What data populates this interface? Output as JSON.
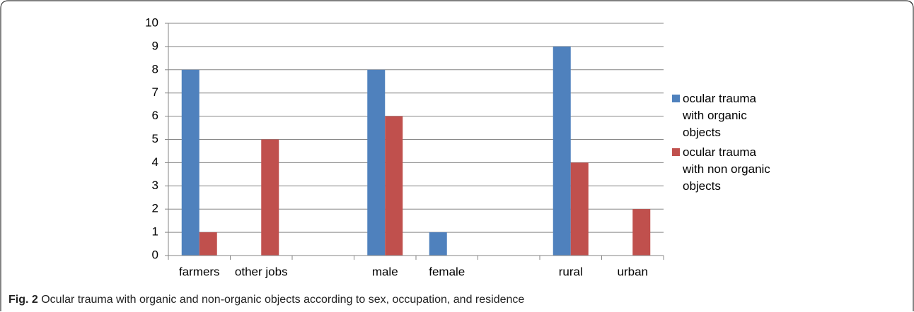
{
  "chart_data": {
    "type": "bar",
    "categories": [
      "farmers",
      "other jobs",
      null,
      "male",
      "female",
      null,
      "rural",
      "urban"
    ],
    "series": [
      {
        "name": "ocular trauma with organic objects",
        "color": "#4f81bd",
        "values": [
          8,
          0,
          null,
          8,
          1,
          null,
          9,
          0
        ]
      },
      {
        "name": "ocular trauma with non organic objects",
        "color": "#c0504d",
        "values": [
          1,
          5,
          null,
          6,
          0,
          null,
          4,
          2
        ]
      }
    ],
    "ylim": [
      0,
      10
    ],
    "yticks": [
      0,
      1,
      2,
      3,
      4,
      5,
      6,
      7,
      8,
      9,
      10
    ],
    "grid": true,
    "legend": "right",
    "caption_label": "Fig. 2",
    "caption": "Ocular trauma with organic and non-organic objects according to sex, occupation, and residence"
  }
}
